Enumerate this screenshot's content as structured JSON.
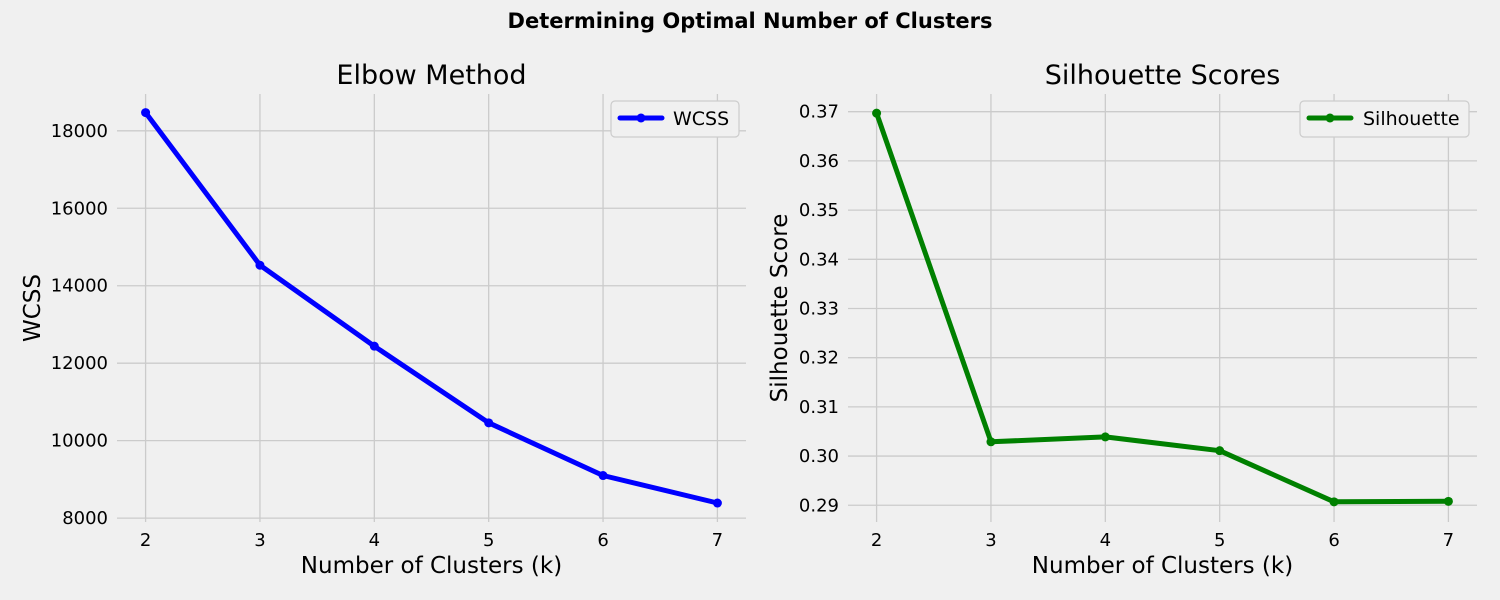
{
  "figure": {
    "title": "Determining Optimal Number of Clusters"
  },
  "chart_data": [
    {
      "type": "line",
      "title": "Elbow Method",
      "xlabel": "Number of Clusters (k)",
      "ylabel": "WCSS",
      "x": [
        2,
        3,
        4,
        5,
        6,
        7
      ],
      "xlim": [
        1.75,
        7.25
      ],
      "ylim": [
        7900,
        18950
      ],
      "xticks": [
        2,
        3,
        4,
        5,
        6,
        7
      ],
      "yticks": [
        8000,
        10000,
        12000,
        14000,
        16000,
        18000
      ],
      "grid": true,
      "legend": "top-right",
      "series": [
        {
          "name": "WCSS",
          "color": "#0000ff",
          "marker": "circle",
          "values": [
            18470,
            14530,
            12440,
            10460,
            9100,
            8390
          ]
        }
      ]
    },
    {
      "type": "line",
      "title": "Silhouette Scores",
      "xlabel": "Number of Clusters (k)",
      "ylabel": "Silhouette Score",
      "x": [
        2,
        3,
        4,
        5,
        6,
        7
      ],
      "xlim": [
        1.75,
        7.25
      ],
      "ylim": [
        0.2866,
        0.3736
      ],
      "xticks": [
        2,
        3,
        4,
        5,
        6,
        7
      ],
      "yticks": [
        0.29,
        0.3,
        0.31,
        0.32,
        0.33,
        0.34,
        0.35,
        0.36,
        0.37
      ],
      "ytick_labels": [
        "0.29",
        "0.30",
        "0.31",
        "0.32",
        "0.33",
        "0.34",
        "0.35",
        "0.36",
        "0.37"
      ],
      "grid": true,
      "legend": "top-right",
      "series": [
        {
          "name": "Silhouette",
          "color": "#008000",
          "marker": "circle",
          "values": [
            0.3697,
            0.3029,
            0.3039,
            0.3011,
            0.2907,
            0.2908
          ]
        }
      ]
    }
  ]
}
